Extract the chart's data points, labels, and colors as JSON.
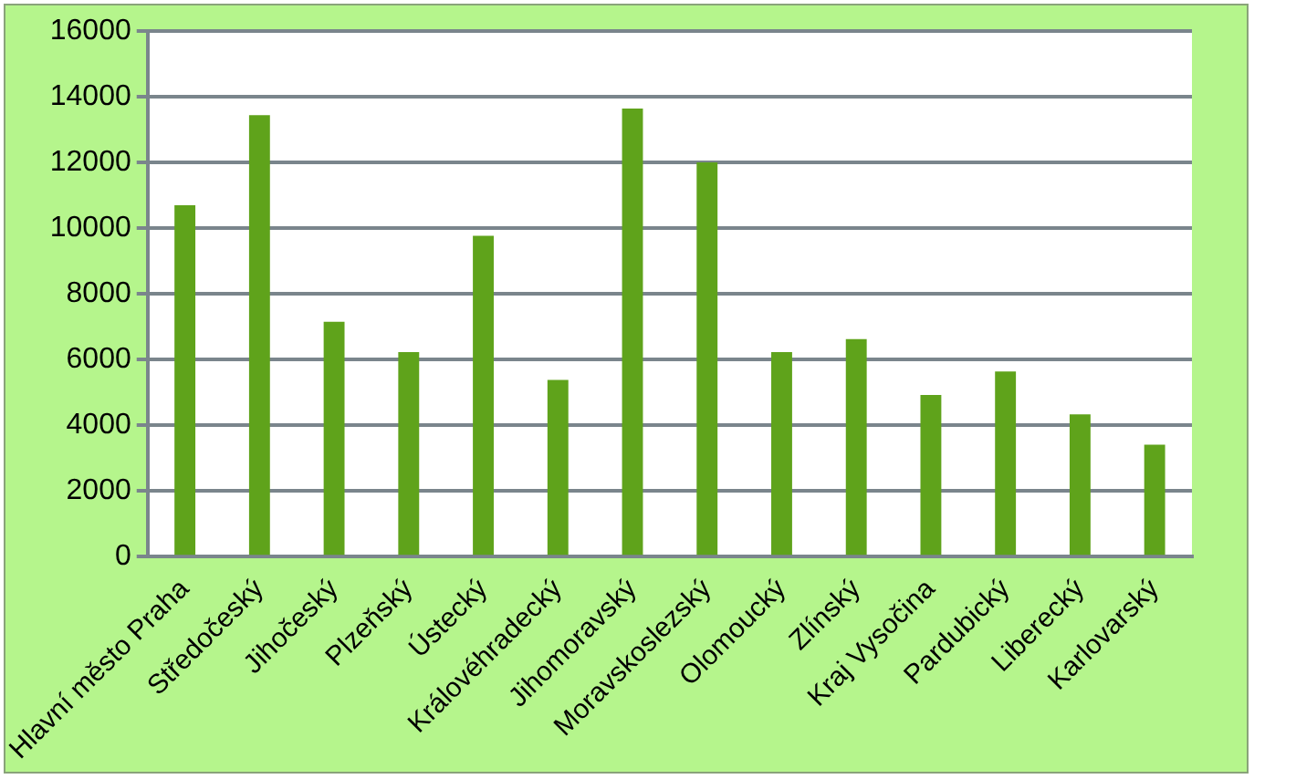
{
  "chart_data": {
    "type": "bar",
    "categories": [
      "Hlavní město Praha",
      "Středočeský",
      "Jihočeský",
      "Plzeňský",
      "Ústecký",
      "Královéhradecký",
      "Jihomoravský",
      "Moravskoslezský",
      "Olomoucký",
      "Zlínský",
      "Kraj Vysočina",
      "Pardubický",
      "Liberecký",
      "Karlovarský"
    ],
    "values": [
      10700,
      13440,
      7150,
      6230,
      9770,
      5380,
      13640,
      12000,
      6230,
      6620,
      4920,
      5640,
      4330,
      3410
    ],
    "color": "#5fa31b",
    "ylim": [
      0,
      16000
    ],
    "yticks": [
      0,
      2000,
      4000,
      6000,
      8000,
      10000,
      12000,
      14000,
      16000
    ],
    "grid": "y",
    "legend": false
  }
}
